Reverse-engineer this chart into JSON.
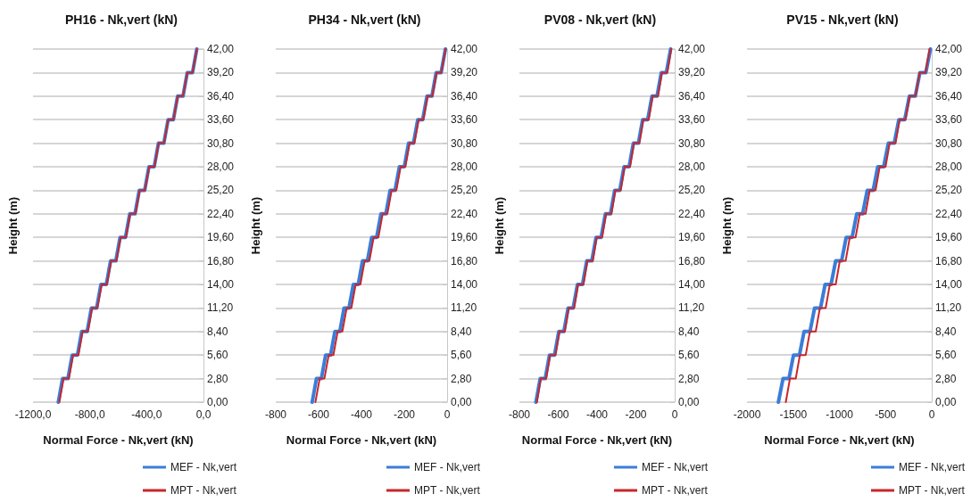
{
  "chart_data": [
    {
      "type": "line",
      "title": "PH16 - Nk,vert (kN)",
      "xlabel": "Normal Force - Nk,vert (kN)",
      "ylabel": "Height (m)",
      "xlim": [
        -1200,
        0
      ],
      "xticks": [
        {
          "value": -1200,
          "label": "-1200,0"
        },
        {
          "value": -800,
          "label": "-800,0"
        },
        {
          "value": -400,
          "label": "-400,0"
        },
        {
          "value": 0,
          "label": "0,0"
        }
      ],
      "ylim": [
        0,
        42
      ],
      "yticks": [
        {
          "value": 0,
          "label": "0,00"
        },
        {
          "value": 2.8,
          "label": "2,80"
        },
        {
          "value": 5.6,
          "label": "5,60"
        },
        {
          "value": 8.4,
          "label": "8,40"
        },
        {
          "value": 11.2,
          "label": "11,20"
        },
        {
          "value": 14,
          "label": "14,00"
        },
        {
          "value": 16.8,
          "label": "16,80"
        },
        {
          "value": 19.6,
          "label": "19,60"
        },
        {
          "value": 22.4,
          "label": "22,40"
        },
        {
          "value": 25.2,
          "label": "25,20"
        },
        {
          "value": 28,
          "label": "28,00"
        },
        {
          "value": 30.8,
          "label": "30,80"
        },
        {
          "value": 33.6,
          "label": "33,60"
        },
        {
          "value": 36.4,
          "label": "36,40"
        },
        {
          "value": 39.2,
          "label": "39,20"
        },
        {
          "value": 42,
          "label": "42,00"
        }
      ],
      "grid": "y",
      "legend": "bottom right",
      "marker": "none",
      "line_style": "solid",
      "series": [
        {
          "name": "MEF - Nk,vert",
          "color": "#3b7dd8",
          "x": [
            -1022,
            -992,
            -954,
            -924,
            -887,
            -857,
            -819,
            -789,
            -752,
            -722,
            -684,
            -654,
            -617,
            -587,
            -549,
            -519,
            -482,
            -452,
            -414,
            -384,
            -347,
            -317,
            -279,
            -249,
            -212,
            -182,
            -144,
            -114,
            -77,
            -47
          ],
          "values": [
            0,
            2.8,
            2.8,
            5.6,
            5.6,
            8.4,
            8.4,
            11.2,
            11.2,
            14,
            14,
            16.8,
            16.8,
            19.6,
            19.6,
            22.4,
            22.4,
            25.2,
            25.2,
            28,
            28,
            30.8,
            30.8,
            33.6,
            33.6,
            36.4,
            36.4,
            39.2,
            39.2,
            42
          ]
        },
        {
          "name": "MPT - Nk,vert",
          "color": "#c8262a",
          "x": [
            -1015,
            -985,
            -948,
            -918,
            -881,
            -851,
            -814,
            -784,
            -747,
            -717,
            -680,
            -650,
            -613,
            -583,
            -546,
            -516,
            -479,
            -449,
            -412,
            -382,
            -345,
            -315,
            -278,
            -248,
            -211,
            -181,
            -144,
            -114,
            -77,
            -47
          ],
          "values": [
            0,
            2.8,
            2.8,
            5.6,
            5.6,
            8.4,
            8.4,
            11.2,
            11.2,
            14,
            14,
            16.8,
            16.8,
            19.6,
            19.6,
            22.4,
            22.4,
            25.2,
            25.2,
            28,
            28,
            30.8,
            30.8,
            33.6,
            33.6,
            36.4,
            36.4,
            39.2,
            39.2,
            42
          ]
        }
      ]
    },
    {
      "type": "line",
      "title": "PH34 - Nk,vert (kN)",
      "xlabel": "Normal Force - Nk,vert (kN)",
      "ylabel": "Height (m)",
      "xlim": [
        -800,
        0
      ],
      "xticks": [
        -800,
        -600,
        -400,
        -200,
        0
      ],
      "ylim": [
        0,
        42
      ],
      "yticks": [
        {
          "value": 0,
          "label": "0,00"
        },
        {
          "value": 2.8,
          "label": "2,80"
        },
        {
          "value": 5.6,
          "label": "5,60"
        },
        {
          "value": 8.4,
          "label": "8,40"
        },
        {
          "value": 11.2,
          "label": "11,20"
        },
        {
          "value": 14,
          "label": "14,00"
        },
        {
          "value": 16.8,
          "label": "16,80"
        },
        {
          "value": 19.6,
          "label": "19,60"
        },
        {
          "value": 22.4,
          "label": "22,40"
        },
        {
          "value": 25.2,
          "label": "25,20"
        },
        {
          "value": 28,
          "label": "28,00"
        },
        {
          "value": 30.8,
          "label": "30,80"
        },
        {
          "value": 33.6,
          "label": "33,60"
        },
        {
          "value": 36.4,
          "label": "36,40"
        },
        {
          "value": 39.2,
          "label": "39,20"
        },
        {
          "value": 42,
          "label": "42,00"
        }
      ],
      "grid": "y",
      "legend": "bottom right",
      "marker": "none",
      "line_style": "solid",
      "series": [
        {
          "name": "MEF - Nk,vert",
          "color": "#3b7dd8",
          "x": [
            -630,
            -610,
            -587,
            -567,
            -544,
            -524,
            -501,
            -481,
            -458,
            -438,
            -415,
            -395,
            -372,
            -352,
            -329,
            -309,
            -286,
            -266,
            -243,
            -223,
            -200,
            -180,
            -157,
            -137,
            -114,
            -94,
            -71,
            -51,
            -28,
            -8
          ],
          "values": [
            0,
            2.8,
            2.8,
            5.6,
            5.6,
            8.4,
            8.4,
            11.2,
            11.2,
            14,
            14,
            16.8,
            16.8,
            19.6,
            19.6,
            22.4,
            22.4,
            25.2,
            25.2,
            28,
            28,
            30.8,
            30.8,
            33.6,
            33.6,
            36.4,
            36.4,
            39.2,
            39.2,
            42
          ]
        },
        {
          "name": "MPT - Nk,vert",
          "color": "#c8262a",
          "x": [
            -615,
            -595,
            -573,
            -553,
            -531,
            -511,
            -489,
            -469,
            -447,
            -427,
            -405,
            -385,
            -363,
            -343,
            -321,
            -301,
            -279,
            -259,
            -237,
            -217,
            -195,
            -175,
            -153,
            -133,
            -111,
            -91,
            -69,
            -49,
            -27,
            -7
          ],
          "values": [
            0,
            2.8,
            2.8,
            5.6,
            5.6,
            8.4,
            8.4,
            11.2,
            11.2,
            14,
            14,
            16.8,
            16.8,
            19.6,
            19.6,
            22.4,
            22.4,
            25.2,
            25.2,
            28,
            28,
            30.8,
            30.8,
            33.6,
            33.6,
            36.4,
            36.4,
            39.2,
            39.2,
            42
          ]
        }
      ]
    },
    {
      "type": "line",
      "title": "PV08 - Nk,vert (kN)",
      "xlabel": "Normal Force - Nk,vert (kN)",
      "ylabel": "Height (m)",
      "xlim": [
        -800,
        0
      ],
      "xticks": [
        -800,
        -600,
        -400,
        -200,
        0
      ],
      "ylim": [
        0,
        42
      ],
      "yticks": [
        {
          "value": 0,
          "label": "0,00"
        },
        {
          "value": 2.8,
          "label": "2,80"
        },
        {
          "value": 5.6,
          "label": "5,60"
        },
        {
          "value": 8.4,
          "label": "8,40"
        },
        {
          "value": 11.2,
          "label": "11,20"
        },
        {
          "value": 14,
          "label": "14,00"
        },
        {
          "value": 16.8,
          "label": "16,80"
        },
        {
          "value": 19.6,
          "label": "19,60"
        },
        {
          "value": 22.4,
          "label": "22,40"
        },
        {
          "value": 25.2,
          "label": "25,20"
        },
        {
          "value": 28,
          "label": "28,00"
        },
        {
          "value": 30.8,
          "label": "30,80"
        },
        {
          "value": 33.6,
          "label": "33,60"
        },
        {
          "value": 36.4,
          "label": "36,40"
        },
        {
          "value": 39.2,
          "label": "39,20"
        },
        {
          "value": 42,
          "label": "42,00"
        }
      ],
      "grid": "y",
      "legend": "bottom right",
      "marker": "none",
      "line_style": "solid",
      "series": [
        {
          "name": "MEF - Nk,vert",
          "color": "#3b7dd8",
          "x": [
            -715,
            -693,
            -667,
            -645,
            -619,
            -597,
            -571,
            -549,
            -523,
            -501,
            -475,
            -453,
            -427,
            -405,
            -379,
            -357,
            -331,
            -309,
            -283,
            -261,
            -235,
            -213,
            -187,
            -165,
            -139,
            -117,
            -91,
            -69,
            -43,
            -21
          ],
          "values": [
            0,
            2.8,
            2.8,
            5.6,
            5.6,
            8.4,
            8.4,
            11.2,
            11.2,
            14,
            14,
            16.8,
            16.8,
            19.6,
            19.6,
            22.4,
            22.4,
            25.2,
            25.2,
            28,
            28,
            30.8,
            30.8,
            33.6,
            33.6,
            36.4,
            36.4,
            39.2,
            39.2,
            42
          ]
        },
        {
          "name": "MPT - Nk,vert",
          "color": "#c8262a",
          "x": [
            -710,
            -690,
            -662,
            -642,
            -614,
            -594,
            -566,
            -546,
            -518,
            -498,
            -470,
            -450,
            -422,
            -402,
            -374,
            -354,
            -326,
            -306,
            -278,
            -258,
            -230,
            -210,
            -182,
            -162,
            -134,
            -114,
            -86,
            -66,
            -38,
            -18
          ],
          "values": [
            0,
            2.8,
            2.8,
            5.6,
            5.6,
            8.4,
            8.4,
            11.2,
            11.2,
            14,
            14,
            16.8,
            16.8,
            19.6,
            19.6,
            22.4,
            22.4,
            25.2,
            25.2,
            28,
            28,
            30.8,
            30.8,
            33.6,
            33.6,
            36.4,
            36.4,
            39.2,
            39.2,
            42
          ]
        }
      ]
    },
    {
      "type": "line",
      "title": "PV15 - Nk,vert (kN)",
      "xlabel": "Normal Force - Nk,vert (kN)",
      "ylabel": "Height (m)",
      "xlim": [
        -2000,
        0
      ],
      "xticks": [
        -2000,
        -1500,
        -1000,
        -500,
        0
      ],
      "ylim": [
        0,
        42
      ],
      "yticks": [
        {
          "value": 0,
          "label": "0,00"
        },
        {
          "value": 2.8,
          "label": "2,80"
        },
        {
          "value": 5.6,
          "label": "5,60"
        },
        {
          "value": 8.4,
          "label": "8,40"
        },
        {
          "value": 11.2,
          "label": "11,20"
        },
        {
          "value": 14,
          "label": "14,00"
        },
        {
          "value": 16.8,
          "label": "16,80"
        },
        {
          "value": 19.6,
          "label": "19,60"
        },
        {
          "value": 22.4,
          "label": "22,40"
        },
        {
          "value": 25.2,
          "label": "25,20"
        },
        {
          "value": 28,
          "label": "28,00"
        },
        {
          "value": 30.8,
          "label": "30,80"
        },
        {
          "value": 33.6,
          "label": "33,60"
        },
        {
          "value": 36.4,
          "label": "36,40"
        },
        {
          "value": 39.2,
          "label": "39,20"
        },
        {
          "value": 42,
          "label": "42,00"
        }
      ],
      "grid": "y",
      "legend": "bottom right",
      "marker": "none",
      "line_style": "solid",
      "series": [
        {
          "name": "MEF - Nk,vert",
          "color": "#3b7dd8",
          "x": [
            -1660,
            -1610,
            -1546,
            -1496,
            -1432,
            -1382,
            -1318,
            -1268,
            -1204,
            -1154,
            -1090,
            -1040,
            -976,
            -926,
            -862,
            -812,
            -748,
            -698,
            -634,
            -584,
            -520,
            -470,
            -406,
            -356,
            -292,
            -242,
            -178,
            -128,
            -64,
            -14
          ],
          "values": [
            0,
            2.8,
            2.8,
            5.6,
            5.6,
            8.4,
            8.4,
            11.2,
            11.2,
            14,
            14,
            16.8,
            16.8,
            19.6,
            19.6,
            22.4,
            22.4,
            25.2,
            25.2,
            28,
            28,
            30.8,
            30.8,
            33.6,
            33.6,
            36.4,
            36.4,
            39.2,
            39.2,
            42
          ]
        },
        {
          "name": "MPT - Nk,vert",
          "color": "#c8262a",
          "x": [
            -1580,
            -1535,
            -1472,
            -1427,
            -1364,
            -1319,
            -1256,
            -1211,
            -1148,
            -1103,
            -1040,
            -995,
            -932,
            -887,
            -824,
            -779,
            -716,
            -671,
            -608,
            -563,
            -500,
            -455,
            -392,
            -347,
            -284,
            -239,
            -176,
            -131,
            -68,
            -23
          ],
          "values": [
            0,
            2.8,
            2.8,
            5.6,
            5.6,
            8.4,
            8.4,
            11.2,
            11.2,
            14,
            14,
            16.8,
            16.8,
            19.6,
            19.6,
            22.4,
            22.4,
            25.2,
            25.2,
            28,
            28,
            30.8,
            30.8,
            33.6,
            33.6,
            36.4,
            36.4,
            39.2,
            39.2,
            42
          ]
        }
      ]
    }
  ]
}
